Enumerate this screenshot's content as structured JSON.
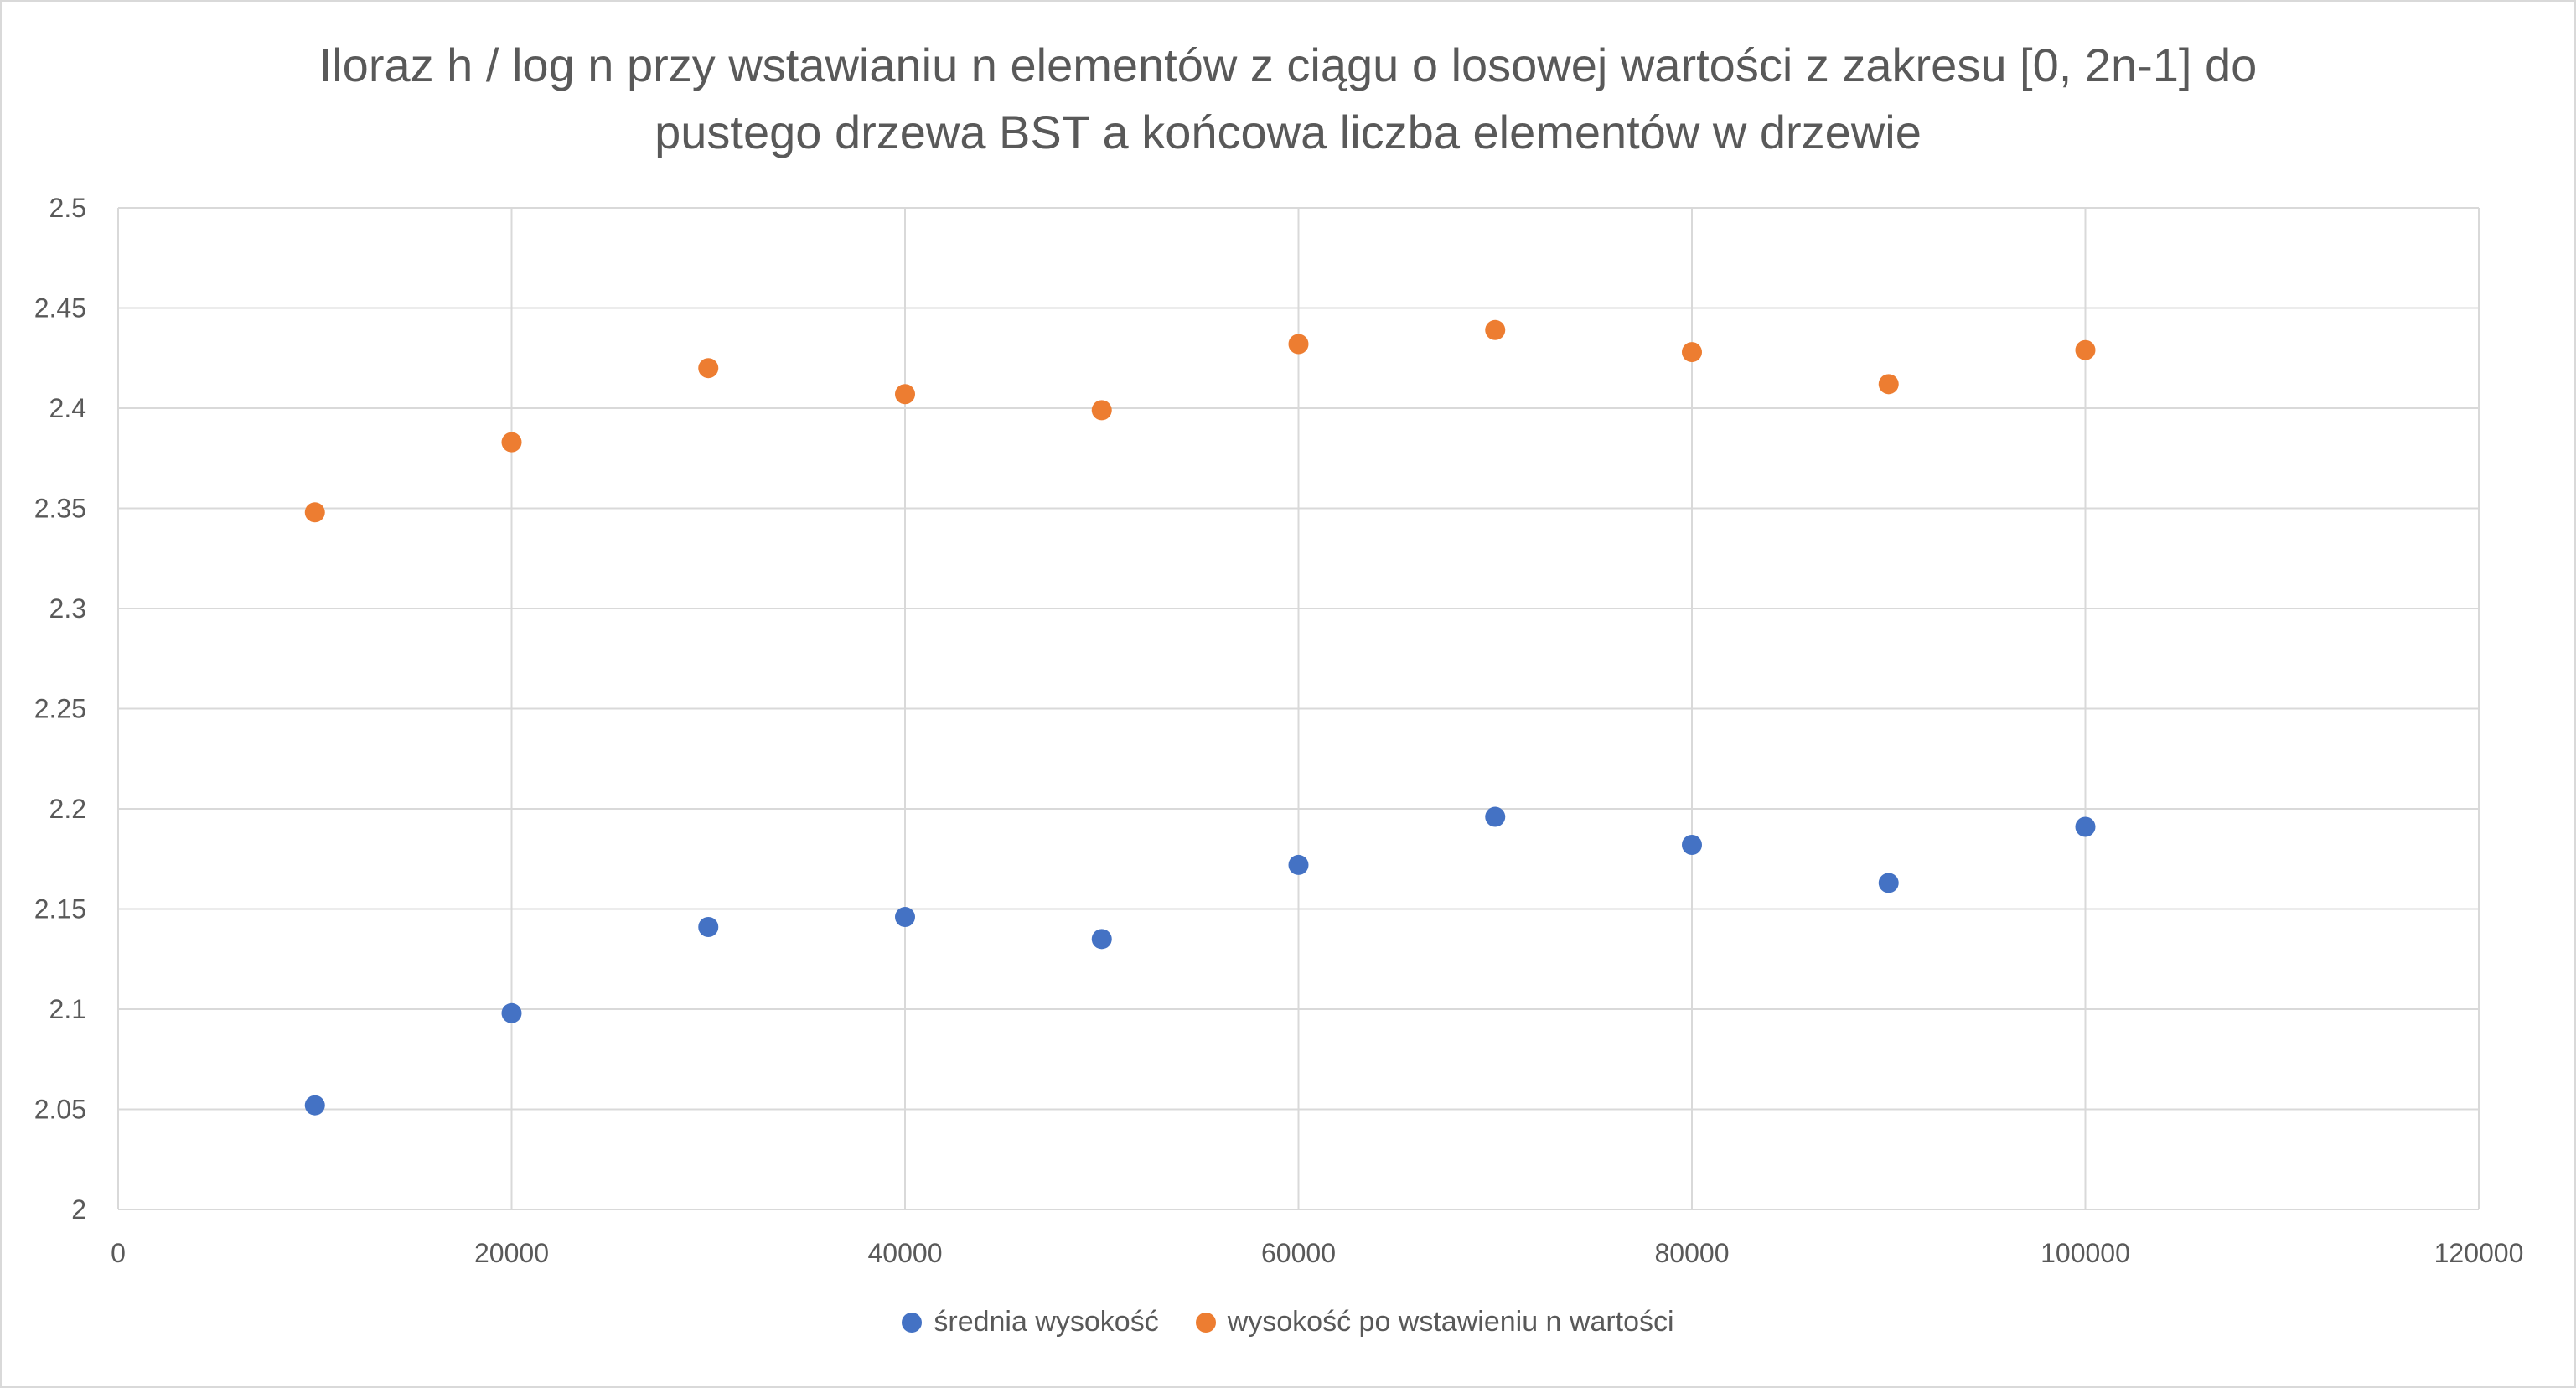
{
  "chart_data": {
    "type": "scatter",
    "title_lines": [
      "Iloraz h / log n przy wstawianiu n elementów z ciągu o losowej wartości z zakresu [0, 2n-1] do",
      "pustego drzewa BST a końcowa liczba elementów w drzewie"
    ],
    "xlabel": "",
    "ylabel": "",
    "xlim": [
      0,
      120000
    ],
    "ylim": [
      2,
      2.5
    ],
    "x_ticks": [
      0,
      20000,
      40000,
      60000,
      80000,
      100000,
      120000
    ],
    "y_ticks": [
      2,
      2.05,
      2.1,
      2.15,
      2.2,
      2.25,
      2.3,
      2.35,
      2.4,
      2.45,
      2.5
    ],
    "grid": true,
    "legend_position": "bottom",
    "series": [
      {
        "name": "średnia wysokość",
        "color": "#4472c4",
        "x": [
          10000,
          20000,
          30000,
          40000,
          50000,
          60000,
          70000,
          80000,
          90000,
          100000
        ],
        "y": [
          2.052,
          2.098,
          2.141,
          2.146,
          2.135,
          2.172,
          2.196,
          2.182,
          2.163,
          2.191
        ]
      },
      {
        "name": "wysokość po wstawieniu n wartości",
        "color": "#ed7d31",
        "x": [
          10000,
          20000,
          30000,
          40000,
          50000,
          60000,
          70000,
          80000,
          90000,
          100000
        ],
        "y": [
          2.348,
          2.383,
          2.42,
          2.407,
          2.399,
          2.432,
          2.439,
          2.428,
          2.412,
          2.429
        ]
      }
    ]
  }
}
